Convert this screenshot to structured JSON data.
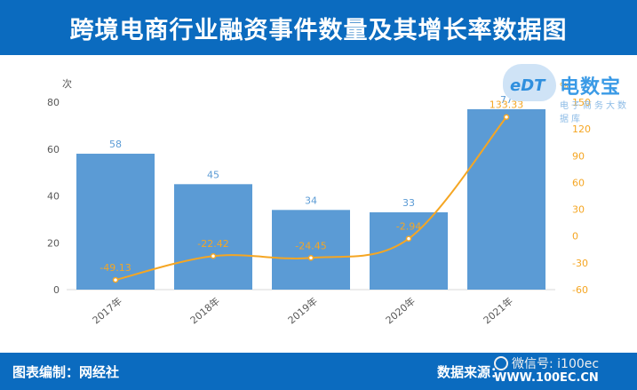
{
  "header": {
    "title": "跨境电商行业融资事件数量及其增长率数据图"
  },
  "footer": {
    "credit": "图表编制：网经社",
    "source": "数据来源："
  },
  "watermark": {
    "wechat": "微信号: i100ec",
    "site": "WWW.100EC.CN"
  },
  "logo": {
    "edt": "eDT",
    "name": "电数宝",
    "sub": "电子商务大数据库"
  },
  "colors": {
    "bar": "#5b9bd5",
    "line": "#f5a623",
    "header": "#0b6bbf"
  },
  "chart_data": {
    "type": "bar",
    "categories": [
      "2017年",
      "2018年",
      "2019年",
      "2020年",
      "2021年"
    ],
    "series": [
      {
        "values": [
          58,
          45,
          34,
          33,
          77
        ]
      },
      {
        "values": [
          -49.13,
          -22.42,
          -24.45,
          -2.94,
          133.33
        ]
      }
    ],
    "data_labels": {
      "bars": [
        "58",
        "45",
        "34",
        "33",
        "77"
      ],
      "line": [
        "-49.13",
        "-22.42",
        "-24.45",
        "-2.94",
        "133.33"
      ]
    },
    "ylabel": "次",
    "y2label": "%",
    "ylim": [
      0,
      80
    ],
    "y2lim": [
      -60,
      150
    ],
    "yticks": [
      "0",
      "20",
      "40",
      "60",
      "80"
    ],
    "y2ticks": [
      "-60",
      "-30",
      "0",
      "30",
      "60",
      "90",
      "120",
      "150"
    ],
    "grid": false,
    "legend": "none"
  }
}
